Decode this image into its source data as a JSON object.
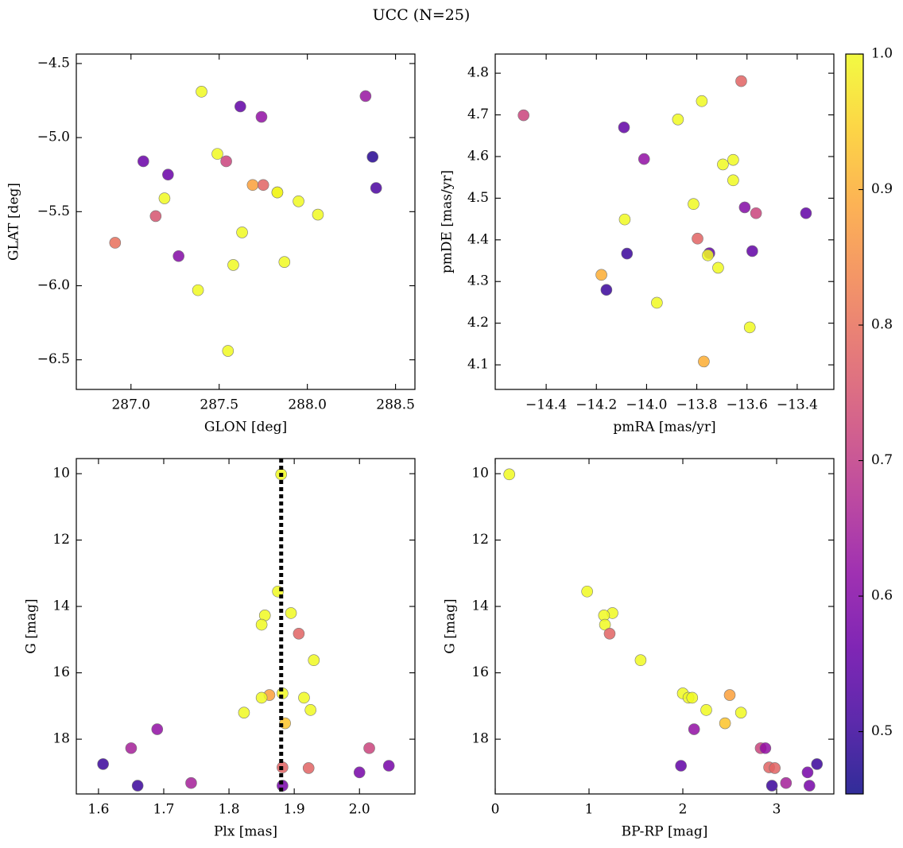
{
  "title": "UCC (N=25)",
  "colorbar": {
    "lim": [
      0.454,
      1.0
    ],
    "colormap": "plasma",
    "ticks": [
      0.5,
      0.6,
      0.7,
      0.8,
      0.9,
      {
        "value": 1.0,
        "label": "1.0"
      }
    ]
  },
  "chart_data": [
    {
      "type": "scatter",
      "xlabel": "GLON [deg]",
      "ylabel": "GLAT [deg]",
      "x": [
        287.4,
        287.62,
        287.74,
        288.33,
        288.37,
        288.39,
        287.07,
        287.21,
        287.49,
        287.54,
        287.69,
        287.75,
        287.83,
        287.83,
        287.95,
        288.06,
        287.19,
        287.14,
        286.91,
        287.63,
        287.27,
        287.58,
        287.87,
        287.38,
        287.55
      ],
      "y": [
        -4.69,
        -4.79,
        -4.86,
        -4.72,
        -5.13,
        -5.34,
        -5.16,
        -5.25,
        -5.11,
        -5.16,
        -5.32,
        -5.32,
        -5.37,
        -5.37,
        -5.43,
        -5.52,
        -5.41,
        -5.53,
        -5.71,
        -5.64,
        -5.8,
        -5.86,
        -5.84,
        -6.03,
        -6.44
      ],
      "c": [
        1.0,
        0.55,
        0.62,
        0.63,
        0.48,
        0.52,
        0.56,
        0.56,
        1.0,
        0.72,
        0.88,
        0.78,
        0.95,
        1.0,
        1.0,
        1.0,
        1.0,
        0.75,
        0.8,
        1.0,
        0.6,
        1.0,
        1.0,
        1.0,
        1.0
      ],
      "xlim": [
        286.69,
        288.61
      ],
      "ylim": [
        -6.7,
        -4.436
      ],
      "xticks": [
        {
          "value": 287.0,
          "label": "287.0"
        },
        {
          "value": 287.5,
          "label": "287.5"
        },
        {
          "value": 288.0,
          "label": "288.0"
        },
        {
          "value": 288.5,
          "label": "288.5"
        }
      ],
      "yticks": [
        {
          "value": -4.5,
          "label": "−4.5"
        },
        {
          "value": -5.0,
          "label": "−5.0"
        },
        {
          "value": -5.5,
          "label": "−5.5"
        },
        {
          "value": -6.0,
          "label": "−6.0"
        },
        {
          "value": -6.5,
          "label": "−6.5"
        }
      ]
    },
    {
      "type": "scatter",
      "xlabel": "pmRA [mas/yr]",
      "ylabel": "pmDE [mas/yr]",
      "x": [
        -14.49,
        -14.09,
        -14.01,
        -13.875,
        -13.78,
        -13.623,
        -13.655,
        -13.696,
        -13.655,
        -13.813,
        -13.609,
        -13.564,
        -13.365,
        -14.087,
        -13.797,
        -13.75,
        -13.756,
        -13.715,
        -13.579,
        -14.078,
        -14.18,
        -14.16,
        -13.959,
        -13.589,
        -13.772
      ],
      "y": [
        4.699,
        4.67,
        4.594,
        4.689,
        4.733,
        4.781,
        4.592,
        4.581,
        4.543,
        4.486,
        4.478,
        4.464,
        4.464,
        4.449,
        4.403,
        4.368,
        4.363,
        4.333,
        4.373,
        4.367,
        4.316,
        4.28,
        4.249,
        4.19,
        4.108
      ],
      "c": [
        0.72,
        0.55,
        0.62,
        1.0,
        1.0,
        0.78,
        1.0,
        1.0,
        1.0,
        1.0,
        0.6,
        0.72,
        0.55,
        1.0,
        0.78,
        0.55,
        1.0,
        1.0,
        0.55,
        0.5,
        0.9,
        0.5,
        1.0,
        1.0,
        0.9
      ],
      "xlim": [
        -14.603,
        -13.254
      ],
      "ylim": [
        4.041,
        4.846
      ],
      "xticks": [
        {
          "value": -14.4,
          "label": "−14.4"
        },
        {
          "value": -14.2,
          "label": "−14.2"
        },
        {
          "value": -14.0,
          "label": "−14.0"
        },
        {
          "value": -13.8,
          "label": "−13.8"
        },
        {
          "value": -13.6,
          "label": "−13.6"
        },
        {
          "value": -13.4,
          "label": "−13.4"
        }
      ],
      "yticks": [
        4.1,
        4.2,
        4.3,
        4.4,
        4.5,
        4.6,
        4.7,
        4.8
      ]
    },
    {
      "type": "scatter",
      "xlabel": "Plx [mas]",
      "ylabel": "G [mag]",
      "x": [
        1.88,
        1.875,
        1.895,
        1.855,
        1.85,
        1.907,
        1.93,
        1.882,
        1.862,
        1.85,
        1.915,
        1.925,
        1.823,
        1.886,
        1.69,
        1.65,
        2.015,
        1.607,
        2.045,
        1.882,
        1.922,
        2.0,
        1.742,
        1.66,
        1.882
      ],
      "y": [
        10.02,
        13.55,
        14.2,
        14.27,
        14.55,
        14.82,
        15.62,
        16.62,
        16.67,
        16.75,
        16.75,
        17.12,
        17.2,
        17.52,
        17.7,
        18.27,
        18.27,
        18.75,
        18.8,
        18.85,
        18.87,
        19.0,
        19.32,
        19.4,
        19.4
      ],
      "c": [
        1.0,
        1.0,
        1.0,
        1.0,
        1.0,
        0.78,
        1.0,
        1.0,
        0.88,
        1.0,
        1.0,
        1.0,
        1.0,
        0.93,
        0.62,
        0.65,
        0.72,
        0.5,
        0.58,
        0.78,
        0.78,
        0.58,
        0.65,
        0.5,
        0.58
      ],
      "xlim": [
        1.566,
        2.085
      ],
      "ylim": [
        19.65,
        9.545
      ],
      "vline": 1.88,
      "xticks": [
        1.6,
        1.7,
        1.8,
        1.9,
        {
          "value": 2.0,
          "label": "2.0"
        }
      ],
      "yticks": [
        10,
        12,
        14,
        16,
        18
      ]
    },
    {
      "type": "scatter",
      "xlabel": "BP-RP [mag]",
      "ylabel": "G [mag]",
      "x": [
        0.15,
        0.98,
        1.25,
        1.16,
        1.17,
        1.22,
        1.55,
        2.0,
        2.5,
        2.06,
        2.1,
        2.25,
        2.62,
        2.45,
        2.12,
        2.83,
        2.88,
        3.43,
        1.98,
        2.92,
        2.98,
        3.33,
        3.1,
        2.95,
        3.35
      ],
      "y": [
        10.02,
        13.55,
        14.2,
        14.27,
        14.55,
        14.82,
        15.62,
        16.62,
        16.67,
        16.75,
        16.75,
        17.12,
        17.2,
        17.52,
        17.7,
        18.27,
        18.27,
        18.75,
        18.8,
        18.85,
        18.87,
        19.0,
        19.32,
        19.4,
        19.4
      ],
      "c": [
        1.0,
        1.0,
        1.0,
        1.0,
        1.0,
        0.78,
        1.0,
        1.0,
        0.88,
        1.0,
        1.0,
        1.0,
        1.0,
        0.93,
        0.62,
        0.72,
        0.62,
        0.5,
        0.55,
        0.78,
        0.78,
        0.58,
        0.65,
        0.5,
        0.58
      ],
      "xlim": [
        0,
        3.61
      ],
      "ylim": [
        19.65,
        9.545
      ],
      "xticks": [
        0,
        1,
        2,
        3
      ],
      "yticks": [
        10,
        12,
        14,
        16,
        18
      ]
    }
  ]
}
